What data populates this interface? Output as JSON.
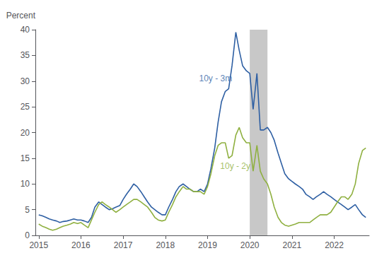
{
  "chart_data": {
    "type": "line",
    "ylabel": "Percent",
    "xlim": [
      2014.92,
      2022.83
    ],
    "xticks": [
      2015,
      2016,
      2017,
      2018,
      2019,
      2020,
      2021,
      2022
    ],
    "ylim": [
      0,
      40
    ],
    "yticks": [
      0,
      5,
      10,
      15,
      20,
      25,
      30,
      35,
      40
    ],
    "grid": false,
    "bands": [
      {
        "x0": 2020.0,
        "x1": 2020.42,
        "color": "#C8C8C8"
      }
    ],
    "annotations": [
      {
        "text": "10y - 3m",
        "x": 2018.8,
        "y": 30.5,
        "color": "#2E5FA3"
      },
      {
        "text": "10y - 2y",
        "x": 2019.3,
        "y": 13.5,
        "color": "#8FB040"
      }
    ],
    "x": [
      2015.0,
      2015.08,
      2015.17,
      2015.25,
      2015.33,
      2015.42,
      2015.5,
      2015.58,
      2015.67,
      2015.75,
      2015.83,
      2015.92,
      2016.0,
      2016.08,
      2016.17,
      2016.25,
      2016.33,
      2016.42,
      2016.5,
      2016.58,
      2016.67,
      2016.75,
      2016.83,
      2016.92,
      2017.0,
      2017.08,
      2017.17,
      2017.25,
      2017.33,
      2017.42,
      2017.5,
      2017.58,
      2017.67,
      2017.75,
      2017.83,
      2017.92,
      2018.0,
      2018.08,
      2018.17,
      2018.25,
      2018.33,
      2018.42,
      2018.5,
      2018.58,
      2018.67,
      2018.75,
      2018.83,
      2018.92,
      2019.0,
      2019.08,
      2019.17,
      2019.25,
      2019.33,
      2019.42,
      2019.5,
      2019.58,
      2019.67,
      2019.75,
      2019.83,
      2019.92,
      2020.0,
      2020.08,
      2020.17,
      2020.25,
      2020.33,
      2020.42,
      2020.5,
      2020.58,
      2020.67,
      2020.75,
      2020.83,
      2020.92,
      2021.0,
      2021.08,
      2021.17,
      2021.25,
      2021.33,
      2021.42,
      2021.5,
      2021.58,
      2021.67,
      2021.75,
      2021.83,
      2021.92,
      2022.0,
      2022.08,
      2022.17,
      2022.25,
      2022.33,
      2022.42,
      2022.5,
      2022.58,
      2022.67,
      2022.75
    ],
    "series": [
      {
        "color": "#2E5FA3",
        "values": [
          4.0,
          3.8,
          3.5,
          3.2,
          3.0,
          2.8,
          2.5,
          2.7,
          2.8,
          3.0,
          3.2,
          3.0,
          3.0,
          2.8,
          2.5,
          3.5,
          5.5,
          6.5,
          6.0,
          5.5,
          5.0,
          5.2,
          5.5,
          5.8,
          7.0,
          8.0,
          9.0,
          10.0,
          9.5,
          8.5,
          7.5,
          6.5,
          5.5,
          5.0,
          4.5,
          4.0,
          4.0,
          5.5,
          7.0,
          8.5,
          9.5,
          10.0,
          9.5,
          9.0,
          8.5,
          8.5,
          9.0,
          8.5,
          10.0,
          13.0,
          17.0,
          22.0,
          26.0,
          28.0,
          28.5,
          33.0,
          39.5,
          36.0,
          33.0,
          32.0,
          31.5,
          24.5,
          31.5,
          20.5,
          20.5,
          21.0,
          20.0,
          18.5,
          16.0,
          14.0,
          12.0,
          11.0,
          10.5,
          10.0,
          9.5,
          9.0,
          8.0,
          7.5,
          7.0,
          7.5,
          8.0,
          8.5,
          8.0,
          7.5,
          7.0,
          6.5,
          6.0,
          5.5,
          5.0,
          5.5,
          6.0,
          5.0,
          4.0,
          3.5
        ]
      },
      {
        "color": "#8FB040",
        "values": [
          2.2,
          1.8,
          1.5,
          1.2,
          1.0,
          1.2,
          1.5,
          1.8,
          2.0,
          2.2,
          2.5,
          2.3,
          2.5,
          2.0,
          1.5,
          3.0,
          4.5,
          6.0,
          6.5,
          6.0,
          5.5,
          5.0,
          4.5,
          5.0,
          5.5,
          6.0,
          6.5,
          7.0,
          7.0,
          6.5,
          6.0,
          5.5,
          4.5,
          3.5,
          3.0,
          2.8,
          3.0,
          4.5,
          6.0,
          7.5,
          8.5,
          9.5,
          9.0,
          9.0,
          8.5,
          8.5,
          8.5,
          8.0,
          9.5,
          12.0,
          15.5,
          17.5,
          18.0,
          18.0,
          15.0,
          15.5,
          19.5,
          21.0,
          19.0,
          18.0,
          18.0,
          12.5,
          17.5,
          12.5,
          11.0,
          10.0,
          8.0,
          5.5,
          3.5,
          2.5,
          2.0,
          1.8,
          2.0,
          2.2,
          2.5,
          2.5,
          2.5,
          2.5,
          3.0,
          3.5,
          4.0,
          4.0,
          4.0,
          4.5,
          5.5,
          6.5,
          7.5,
          7.5,
          7.0,
          8.0,
          10.0,
          14.0,
          16.5,
          17.0
        ]
      }
    ]
  }
}
